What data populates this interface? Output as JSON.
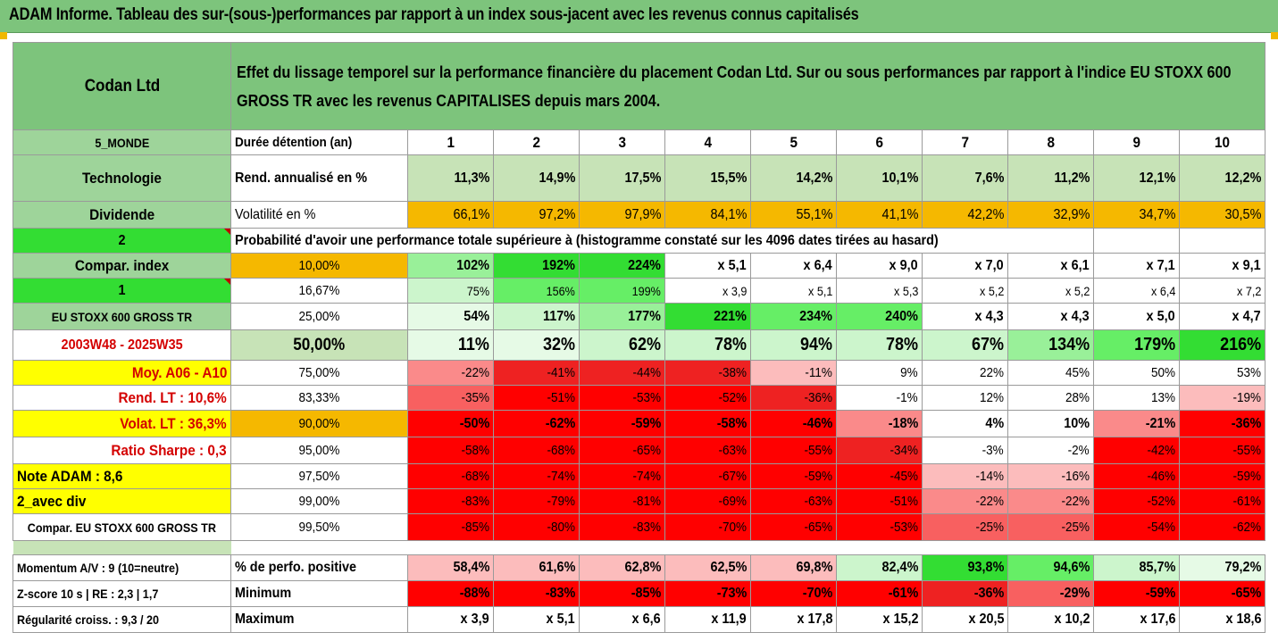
{
  "title": "ADAM Informe. Tableau des sur-(sous-)performances par rapport à un index sous-jacent avec les revenus connus capitalisés",
  "header": {
    "company": "Codan Ltd",
    "description": "Effet du lissage temporel sur la performance financière du placement Codan Ltd. Sur ou sous performances par rapport à l'indice EU STOXX 600 GROSS TR avec les revenus CAPITALISES depuis mars 2004."
  },
  "rows": {
    "duree": {
      "side": "5_MONDE",
      "label": "Durée détention (an)",
      "values": [
        "1",
        "2",
        "3",
        "4",
        "5",
        "6",
        "7",
        "8",
        "9",
        "10"
      ]
    },
    "rend": {
      "side": "Technologie",
      "label": "Rend. annualisé en %",
      "values": [
        "11,3%",
        "14,9%",
        "17,5%",
        "15,5%",
        "14,2%",
        "10,1%",
        "7,6%",
        "11,2%",
        "12,1%",
        "12,2%"
      ]
    },
    "vol": {
      "side": "Dividende",
      "label": "Volatilité en %",
      "values": [
        "66,1%",
        "97,2%",
        "97,9%",
        "84,1%",
        "55,1%",
        "41,1%",
        "42,2%",
        "32,9%",
        "34,7%",
        "30,5%"
      ]
    },
    "proba": {
      "side": "2",
      "label": "Probabilité d'avoir une performance totale supérieure à (histogramme constaté sur les 4096 dates tirées au hasard)"
    }
  },
  "quantiles": [
    {
      "side": "Compar. index",
      "q": "10,00%",
      "values": [
        "102%",
        "192%",
        "224%",
        "x 5,1",
        "x 6,4",
        "x 9,0",
        "x 7,0",
        "x 6,1",
        "x 7,1",
        "x 9,1"
      ]
    },
    {
      "side": "1",
      "q": "16,67%",
      "values": [
        "75%",
        "156%",
        "199%",
        "x 3,9",
        "x 5,1",
        "x 5,3",
        "x 5,2",
        "x 5,2",
        "x 6,4",
        "x 7,2"
      ]
    },
    {
      "side": "EU STOXX 600 GROSS TR",
      "q": "25,00%",
      "values": [
        "54%",
        "117%",
        "177%",
        "221%",
        "234%",
        "240%",
        "x 4,3",
        "x 4,3",
        "x 5,0",
        "x 4,7"
      ]
    },
    {
      "side": "2003W48 - 2025W35",
      "q": "50,00%",
      "values": [
        "11%",
        "32%",
        "62%",
        "78%",
        "94%",
        "78%",
        "67%",
        "134%",
        "179%",
        "216%"
      ]
    },
    {
      "side": "Moy. A06 - A10",
      "q": "75,00%",
      "values": [
        "-22%",
        "-41%",
        "-44%",
        "-38%",
        "-11%",
        "9%",
        "22%",
        "45%",
        "50%",
        "53%"
      ]
    },
    {
      "side": "Rend. LT :   10,6%",
      "q": "83,33%",
      "values": [
        "-35%",
        "-51%",
        "-53%",
        "-52%",
        "-36%",
        "-1%",
        "12%",
        "28%",
        "13%",
        "-19%"
      ]
    },
    {
      "side": "Volat. LT :   36,3%",
      "q": "90,00%",
      "values": [
        "-50%",
        "-62%",
        "-59%",
        "-58%",
        "-46%",
        "-18%",
        "4%",
        "10%",
        "-21%",
        "-36%"
      ]
    },
    {
      "side": "Ratio Sharpe :    0,3",
      "q": "95,00%",
      "values": [
        "-58%",
        "-68%",
        "-65%",
        "-63%",
        "-55%",
        "-34%",
        "-3%",
        "-2%",
        "-42%",
        "-55%"
      ]
    },
    {
      "side": "Note ADAM : 8,6",
      "q": "97,50%",
      "values": [
        "-68%",
        "-74%",
        "-74%",
        "-67%",
        "-59%",
        "-45%",
        "-14%",
        "-16%",
        "-46%",
        "-59%"
      ]
    },
    {
      "side": "2_avec div",
      "q": "99,00%",
      "values": [
        "-83%",
        "-79%",
        "-81%",
        "-69%",
        "-63%",
        "-51%",
        "-22%",
        "-22%",
        "-52%",
        "-61%"
      ]
    },
    {
      "side": "Compar. EU STOXX 600 GROSS TR",
      "q": "99,50%",
      "values": [
        "-85%",
        "-80%",
        "-83%",
        "-70%",
        "-65%",
        "-53%",
        "-25%",
        "-25%",
        "-54%",
        "-62%"
      ]
    }
  ],
  "footer": [
    {
      "side": "Momentum A/V : 9 (10=neutre)",
      "label": "% de perfo. positive",
      "values": [
        "58,4%",
        "61,6%",
        "62,8%",
        "62,5%",
        "69,8%",
        "82,4%",
        "93,8%",
        "94,6%",
        "85,7%",
        "79,2%"
      ]
    },
    {
      "side": "Z-score 10 s  |  RE : 2,3  |  1,7",
      "label": "Minimum",
      "values": [
        "-88%",
        "-83%",
        "-85%",
        "-73%",
        "-70%",
        "-61%",
        "-36%",
        "-29%",
        "-59%",
        "-65%"
      ]
    },
    {
      "side": "Régularité croiss. : 9,3 / 20",
      "label": "Maximum",
      "values": [
        "x 3,9",
        "x 5,1",
        "x 6,6",
        "x 11,9",
        "x 17,8",
        "x 15,2",
        "x 20,5",
        "x 10,2",
        "x 17,6",
        "x 18,6"
      ]
    }
  ],
  "colors": {
    "header_green": "#7dc47c",
    "orange": "#f5b800",
    "yellow": "#ffff00",
    "red": "#ff0000",
    "bright_green": "#33dd33"
  }
}
